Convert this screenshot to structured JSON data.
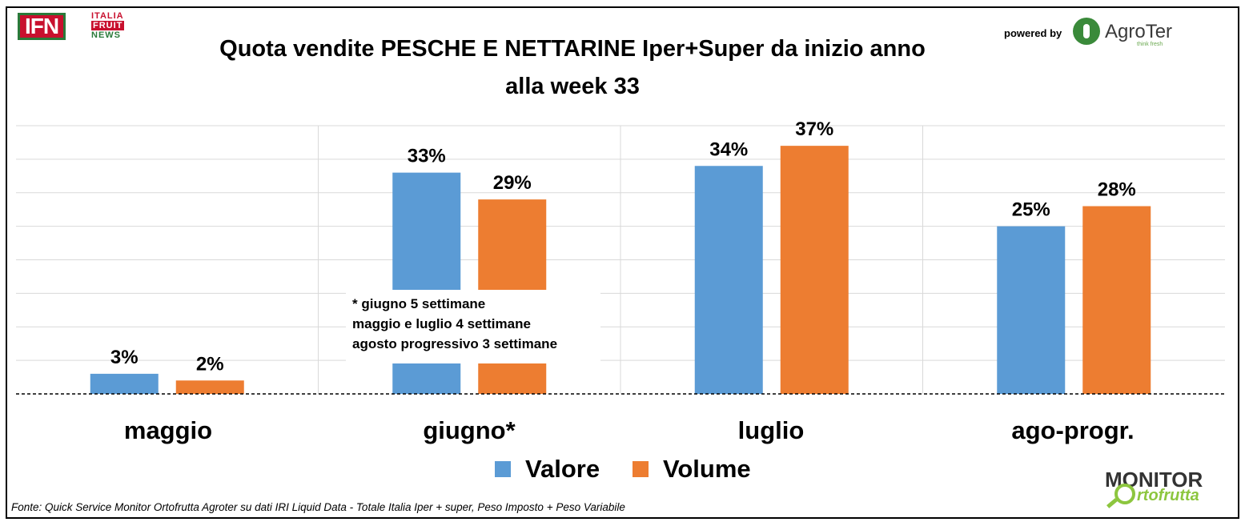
{
  "header": {
    "title_line1": "Quota vendite PESCHE E NETTARINE Iper+Super da inizio anno",
    "title_line2": "alla week 33",
    "powered_by": "powered by"
  },
  "logos": {
    "ifn_mark": "IFN",
    "ifn_words": [
      "ITALIA",
      "FRUIT",
      "NEWS"
    ],
    "agroter_name": "AgroTer",
    "agroter_tagline": "think fresh",
    "monitor_top": "MONITOR",
    "monitor_bottom": "rtofrutta"
  },
  "note": {
    "lines": [
      "* giugno 5 settimane",
      "maggio e luglio 4 settimane",
      "agosto progressivo 3 settimane"
    ]
  },
  "footer": {
    "source": "Fonte: Quick Service Monitor Ortofrutta Agroter su dati IRI Liquid Data - Totale Italia Iper + super, Peso Imposto + Peso Variabile"
  },
  "colors": {
    "valore": "#5b9bd5",
    "volume": "#ed7d31",
    "grid": "#d9d9d9"
  },
  "chart_data": {
    "type": "bar",
    "categories": [
      "maggio",
      "giugno*",
      "luglio",
      "ago-progr."
    ],
    "series": [
      {
        "name": "Valore",
        "values": [
          3,
          33,
          34,
          25
        ],
        "labels": [
          "3%",
          "33%",
          "34%",
          "25%"
        ]
      },
      {
        "name": "Volume",
        "values": [
          2,
          29,
          37,
          28
        ],
        "labels": [
          "2%",
          "29%",
          "37%",
          "28%"
        ]
      }
    ],
    "ylim": [
      0,
      40
    ],
    "grid": true,
    "legend": "bottom"
  }
}
